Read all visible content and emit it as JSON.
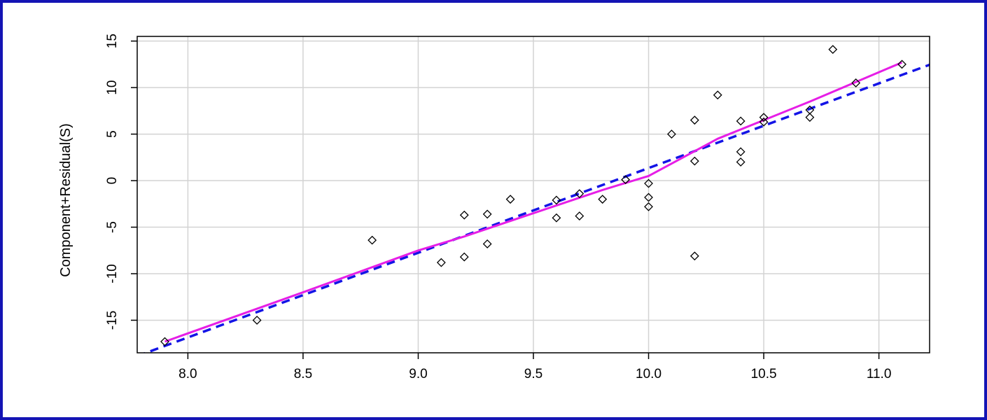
{
  "chart_data": {
    "type": "scatter",
    "title": "",
    "xlabel": "",
    "ylabel": "Component+Residual(S)",
    "xlim": [
      7.78,
      11.22
    ],
    "ylim": [
      -18.5,
      15.5
    ],
    "x_ticks": [
      8.0,
      8.5,
      9.0,
      9.5,
      10.0,
      10.5,
      11.0
    ],
    "x_tick_labels": [
      "8.0",
      "8.5",
      "9.0",
      "9.5",
      "10.0",
      "10.5",
      "11.0"
    ],
    "y_ticks": [
      -15,
      -10,
      -5,
      0,
      5,
      10,
      15
    ],
    "y_tick_labels": [
      "-15",
      "-10",
      "-5",
      "0",
      "5",
      "10",
      "15"
    ],
    "grid": true,
    "points": {
      "x": [
        7.9,
        8.3,
        8.8,
        9.1,
        9.2,
        9.2,
        9.3,
        9.3,
        9.4,
        9.6,
        9.6,
        9.7,
        9.7,
        9.8,
        9.9,
        10.0,
        10.0,
        10.0,
        10.1,
        10.2,
        10.2,
        10.2,
        10.3,
        10.4,
        10.4,
        10.4,
        10.5,
        10.5,
        10.7,
        10.7,
        10.8,
        10.9,
        11.1
      ],
      "y": [
        -17.3,
        -15.0,
        -6.4,
        -8.8,
        -3.7,
        -8.2,
        -3.6,
        -6.8,
        -2.0,
        -2.1,
        -4.0,
        -1.4,
        -3.8,
        -2.0,
        0.1,
        -0.3,
        -1.8,
        -2.8,
        5.0,
        6.5,
        2.1,
        -8.1,
        9.2,
        6.4,
        3.1,
        2.0,
        6.8,
        6.3,
        7.6,
        6.8,
        14.1,
        10.5,
        12.5
      ],
      "marker": "open-diamond",
      "color": "#000000"
    },
    "lines": [
      {
        "kind": "linear-fit",
        "style": "dashed",
        "color": "#1414e6",
        "x": [
          7.78,
          11.22
        ],
        "y": [
          -18.85,
          12.45
        ]
      },
      {
        "kind": "smooth",
        "style": "solid",
        "color": "#e61ee6",
        "x": [
          7.9,
          8.5,
          9.0,
          9.2,
          9.5,
          9.8,
          10.0,
          10.3,
          10.7,
          11.1
        ],
        "y": [
          -17.3,
          -12.0,
          -7.5,
          -6.0,
          -3.5,
          -1.0,
          0.5,
          4.5,
          8.5,
          12.7
        ]
      }
    ]
  }
}
